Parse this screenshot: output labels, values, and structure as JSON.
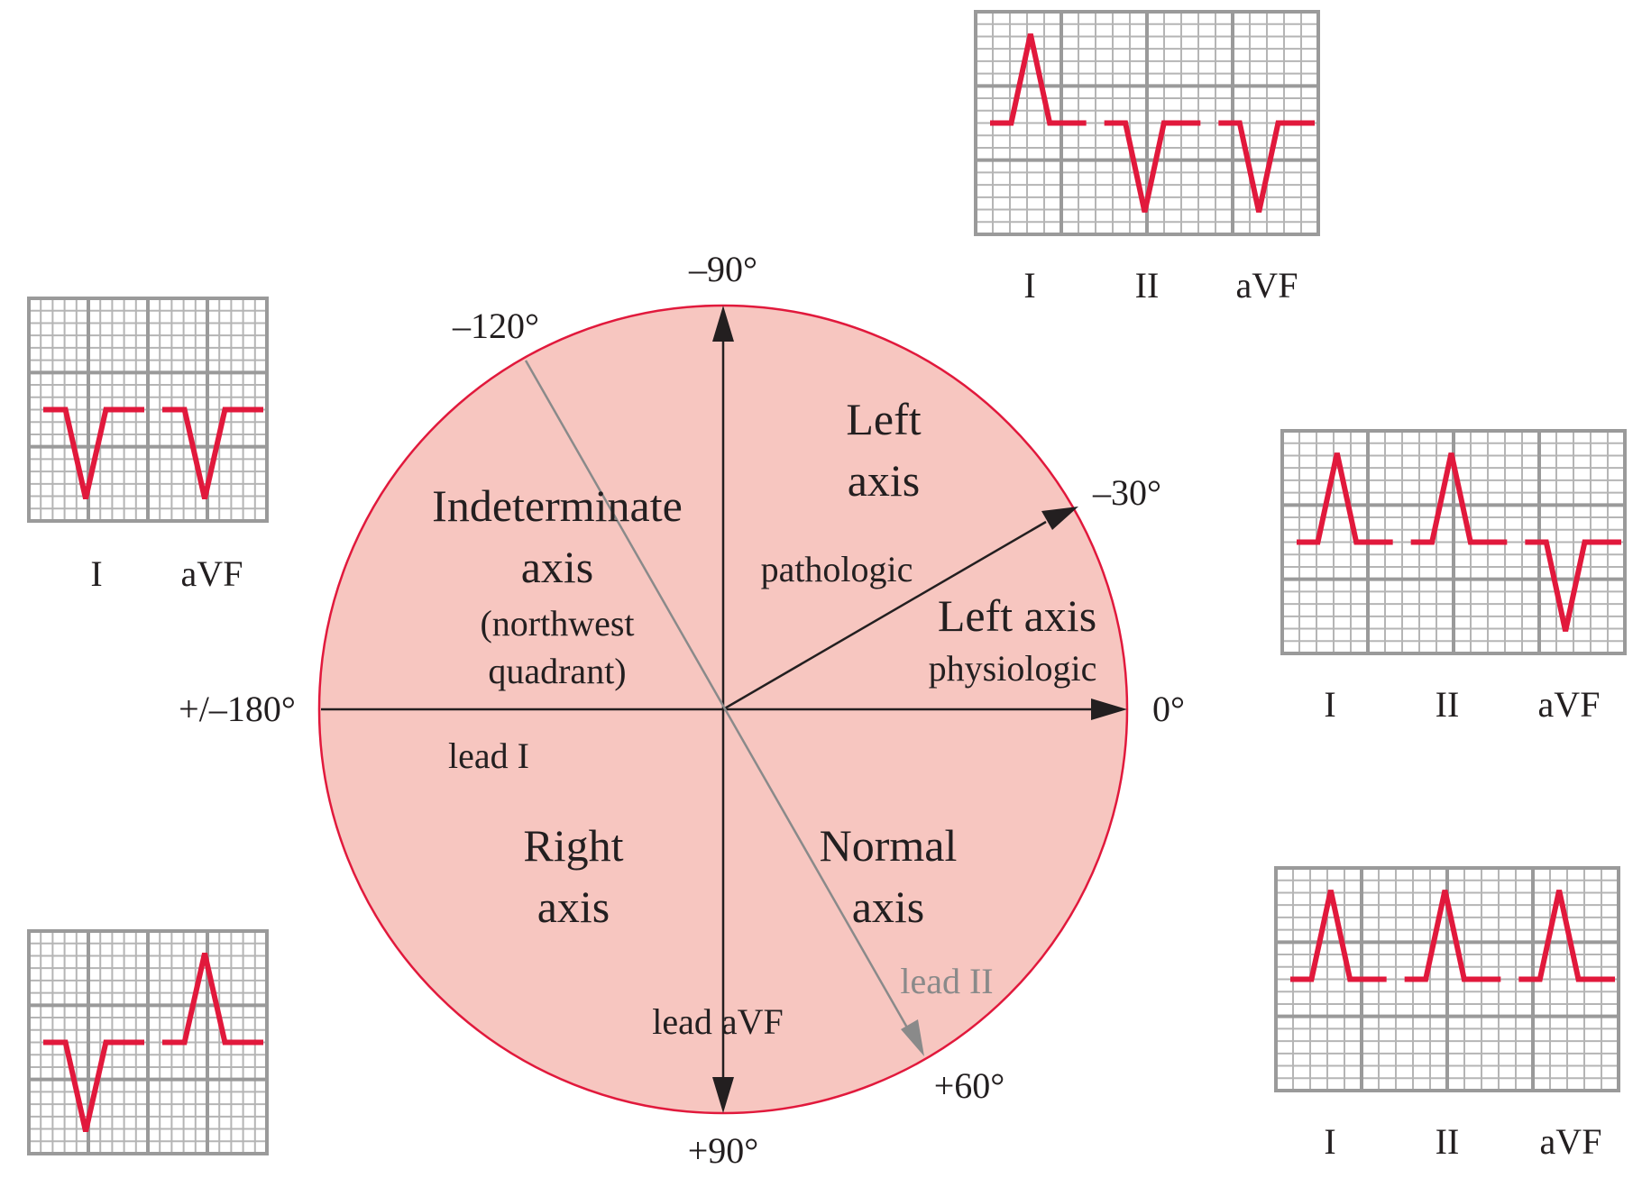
{
  "colors": {
    "circle_fill": "#f7c6c0",
    "circle_stroke": "#e1193c",
    "trace": "#e1193c",
    "grid": "#9a9a9a",
    "lead_ii_line": "#8a8a8a",
    "text": "#231f20"
  },
  "angles": {
    "m90": "–90°",
    "m120": "–120°",
    "m30": "–30°",
    "zero": "0°",
    "pm180": "+/–180°",
    "p60": "+60°",
    "p90": "+90°"
  },
  "regions": {
    "left_pathologic": {
      "line1": "Left",
      "line2": "axis",
      "note": "pathologic"
    },
    "left_physiologic": {
      "line1": "Left axis",
      "note": "physiologic"
    },
    "indeterminate": {
      "line1": "Indeterminate",
      "line2": "axis",
      "note1": "(northwest",
      "note2": "quadrant)"
    },
    "right": {
      "line1": "Right",
      "line2": "axis"
    },
    "normal": {
      "line1": "Normal",
      "line2": "axis"
    }
  },
  "lead_labels": {
    "lead_i": "lead I",
    "lead_ii": "lead II",
    "lead_avf": "lead aVF"
  },
  "ecg_panels": [
    {
      "id": "left-pathologic",
      "leads": [
        "I",
        "II",
        "aVF"
      ],
      "polarity": [
        "up",
        "down",
        "down"
      ]
    },
    {
      "id": "indeterminate",
      "leads": [
        "I",
        "aVF"
      ],
      "polarity": [
        "down",
        "down"
      ]
    },
    {
      "id": "left-physiologic",
      "leads": [
        "I",
        "II",
        "aVF"
      ],
      "polarity": [
        "up",
        "up",
        "down"
      ]
    },
    {
      "id": "right",
      "leads": [
        "I",
        "aVF"
      ],
      "polarity": [
        "down",
        "up"
      ]
    },
    {
      "id": "normal",
      "leads": [
        "I",
        "II",
        "aVF"
      ],
      "polarity": [
        "up",
        "up",
        "up"
      ]
    }
  ]
}
